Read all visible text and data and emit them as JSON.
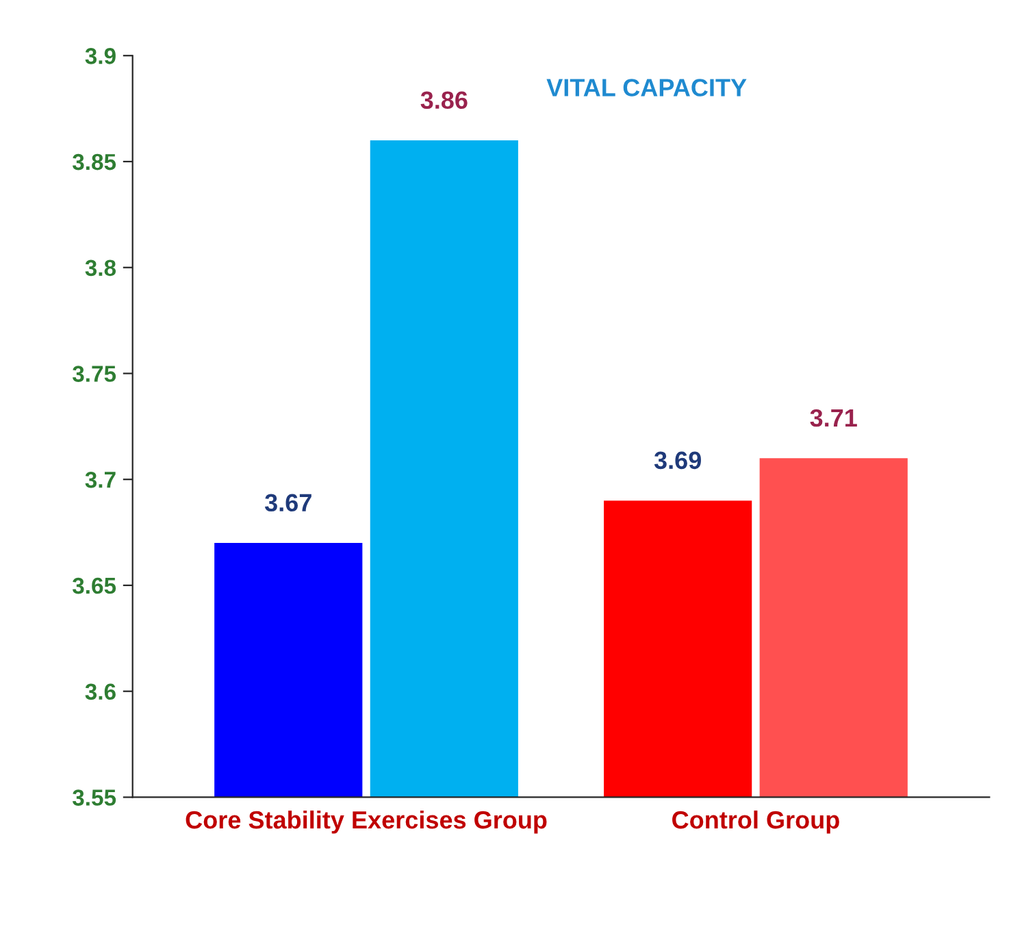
{
  "chart_data": {
    "type": "bar",
    "title": "VITAL CAPACITY",
    "categories": [
      "Core Stability Exercises Group",
      "Control Group"
    ],
    "series": [
      {
        "colors": [
          "#0000ff",
          "#ff0000"
        ],
        "values": [
          3.67,
          3.69
        ]
      },
      {
        "colors": [
          "#00b0f0",
          "#ff5050"
        ],
        "values": [
          3.86,
          3.71
        ]
      }
    ],
    "ylim": [
      3.55,
      3.9
    ],
    "yticks": [
      3.55,
      3.6,
      3.65,
      3.7,
      3.75,
      3.8,
      3.85,
      3.9
    ],
    "data_labels": true,
    "grid": false,
    "legend": false
  }
}
